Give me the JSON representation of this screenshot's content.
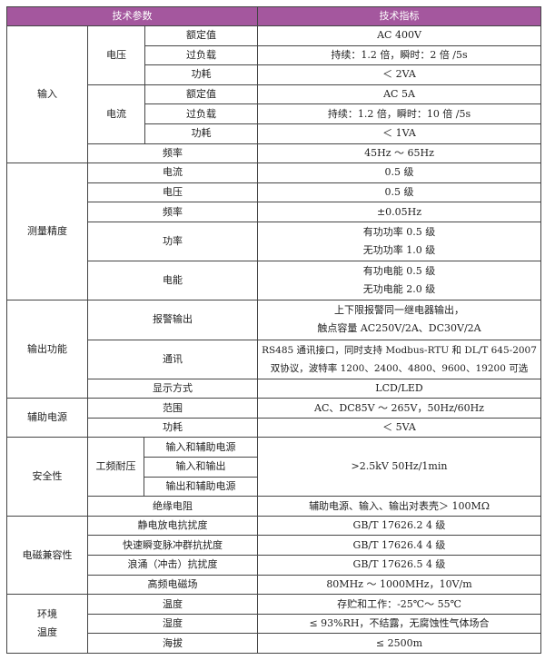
{
  "header": {
    "param": "技术参数",
    "spec": "技术指标"
  },
  "colors": {
    "header_bg": "#a4579e",
    "header_text": "#ffffff",
    "border": "#444444"
  },
  "input": {
    "group": "输入",
    "voltage": {
      "label": "电压",
      "rows": [
        [
          "额定值",
          "AC 400V"
        ],
        [
          "过负载",
          "持续：1.2 倍，瞬时：2 倍 /5s"
        ],
        [
          "功耗",
          "＜ 2VA"
        ]
      ]
    },
    "current": {
      "label": "电流",
      "rows": [
        [
          "额定值",
          "AC 5A"
        ],
        [
          "过负载",
          "持续：1.2 倍，瞬时：10 倍 /5s"
        ],
        [
          "功耗",
          "＜ 1VA"
        ]
      ]
    },
    "frequency": [
      "频率",
      "45Hz ～ 65Hz"
    ]
  },
  "accuracy": {
    "group": "测量精度",
    "rows": [
      [
        "电流",
        "0.5 级"
      ],
      [
        "电压",
        "0.5 级"
      ],
      [
        "频率",
        "±0.05Hz"
      ]
    ],
    "power": {
      "label": "功率",
      "lines": [
        "有功功率 0.5 级",
        "无功功率 1.0 级"
      ]
    },
    "energy": {
      "label": "电能",
      "lines": [
        "有功电能 0.5 级",
        "无功电能 2.0 级"
      ]
    }
  },
  "output": {
    "group": "输出功能",
    "alarm": {
      "label": "报警输出",
      "lines": [
        "上下限报警同一继电器输出，",
        "触点容量 AC250V/2A、DC30V/2A"
      ]
    },
    "comm": {
      "label": "通讯",
      "lines": [
        "RS485 通讯接口，同时支持 Modbus-RTU 和 DL/T 645-2007",
        "双协议，波特率 1200、2400、4800、9600、19200 可选"
      ]
    },
    "display": [
      "显示方式",
      "LCD/LED"
    ]
  },
  "aux": {
    "group": "辅助电源",
    "rows": [
      [
        "范围",
        "AC、DC85V ～ 265V，50Hz/60Hz"
      ],
      [
        "功耗",
        "＜ 5VA"
      ]
    ]
  },
  "safety": {
    "group": "安全性",
    "withstand": {
      "label": "工频耐压",
      "items": [
        "输入和辅助电源",
        "输入和输出",
        "输出和辅助电源"
      ],
      "value": ">2.5kV 50Hz/1min"
    },
    "insulation": [
      "绝缘电阻",
      "辅助电源、输入、输出对表壳＞ 100MΩ"
    ]
  },
  "emc": {
    "group": "电磁兼容性",
    "rows": [
      [
        "静电放电抗扰度",
        "GB/T 17626.2 4 级"
      ],
      [
        "快速瞬变脉冲群抗扰度",
        "GB/T 17626.4 4 级"
      ],
      [
        "浪涌（冲击）抗扰度",
        "GB/T 17626.5 4 级"
      ],
      [
        "高频电磁场",
        "80MHz ～ 1000MHz，10V/m"
      ]
    ]
  },
  "env": {
    "group_lines": [
      "环境",
      "温度"
    ],
    "rows": [
      [
        "温度",
        "存贮和工作：-25℃～ 55℃"
      ],
      [
        "湿度",
        "≤ 93%RH，不结露，无腐蚀性气体场合"
      ],
      [
        "海拔",
        "≤ 2500m"
      ]
    ]
  }
}
